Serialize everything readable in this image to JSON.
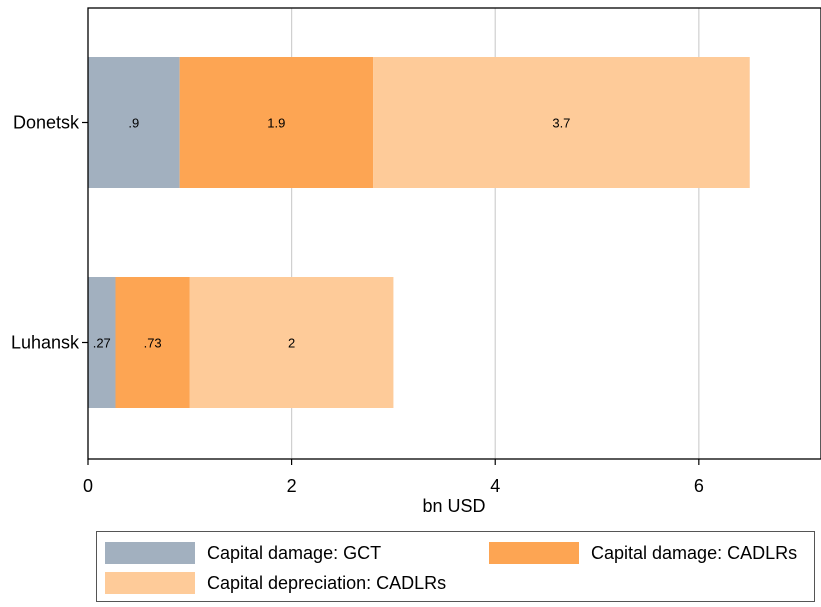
{
  "chart_data": {
    "type": "bar",
    "orientation": "horizontal",
    "stacked": true,
    "categories": [
      "Donetsk",
      "Luhansk"
    ],
    "series": [
      {
        "name": "Capital damage: GCT",
        "color": "#a2b0bf",
        "values": [
          0.9,
          0.27
        ],
        "labels": [
          ".9",
          ".27"
        ]
      },
      {
        "name": "Capital damage: CADLRs",
        "color": "#fda553",
        "values": [
          1.9,
          0.73
        ],
        "labels": [
          "1.9",
          ".73"
        ]
      },
      {
        "name": "Capital depreciation: CADLRs",
        "color": "#fecb99",
        "values": [
          3.7,
          2
        ],
        "labels": [
          "3.7",
          "2"
        ]
      }
    ],
    "xlabel": "bn USD",
    "ylabel": "",
    "xlim": [
      0,
      7.2
    ],
    "xticks": [
      0,
      2,
      4,
      6
    ],
    "xtick_labels": [
      "0",
      "2",
      "4",
      "6"
    ],
    "grid": "vertical",
    "legend_position": "bottom"
  }
}
